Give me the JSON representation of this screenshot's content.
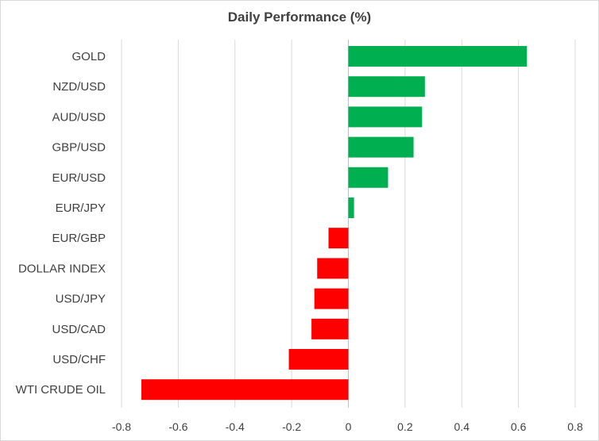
{
  "chart_data": {
    "type": "bar",
    "orientation": "horizontal",
    "title": "Daily Performance (%)",
    "xlabel": "",
    "ylabel": "",
    "xlim": [
      -0.8,
      0.8
    ],
    "xticks": [
      "-0.8",
      "-0.6",
      "-0.4",
      "-0.2",
      "0",
      "0.2",
      "0.4",
      "0.6",
      "0.8"
    ],
    "grid": "vertical",
    "categories": [
      "GOLD",
      "NZD/USD",
      "AUD/USD",
      "GBP/USD",
      "EUR/USD",
      "EUR/JPY",
      "EUR/GBP",
      "DOLLAR INDEX",
      "USD/JPY",
      "USD/CAD",
      "USD/CHF",
      "WTI CRUDE OIL"
    ],
    "values": [
      0.63,
      0.27,
      0.26,
      0.23,
      0.14,
      0.02,
      -0.07,
      -0.11,
      -0.12,
      -0.13,
      -0.21,
      -0.73
    ],
    "colors": {
      "positive": "#00b050",
      "negative": "#ff0000",
      "grid": "#d9d9d9",
      "text": "#404040"
    }
  }
}
